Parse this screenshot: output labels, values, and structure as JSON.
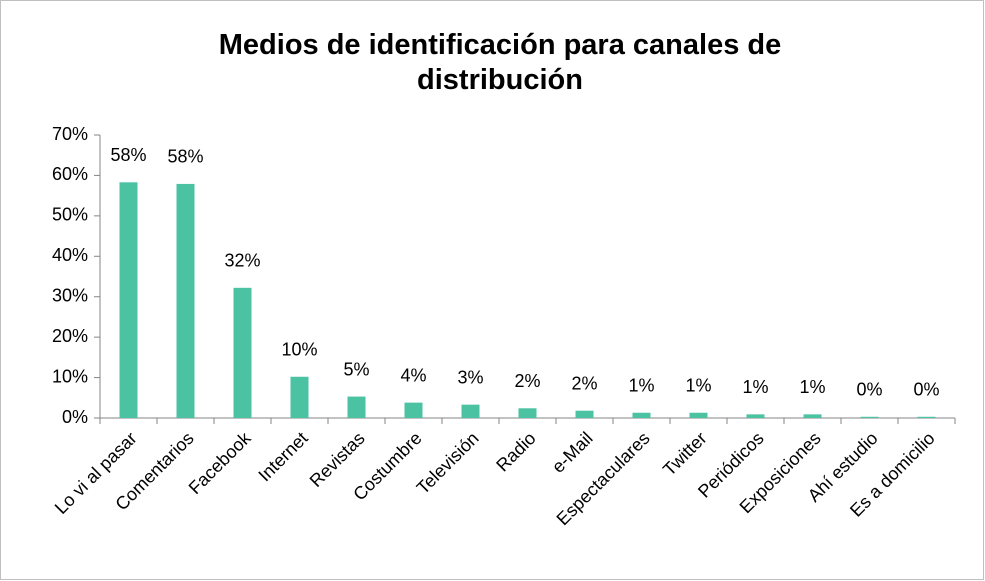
{
  "chart_data": {
    "type": "bar",
    "title": "Medios de identificación para canales de distribución",
    "categories": [
      "Lo vi al pasar",
      "Comentarios",
      "Facebook",
      "Internet",
      "Revistas",
      "Costumbre",
      "Televisión",
      "Radio",
      "e-Mail",
      "Espectaculares",
      "Twitter",
      "Periódicos",
      "Exposiciones",
      "Ahí estudio",
      "Es a domicilio"
    ],
    "values": [
      58.3,
      57.9,
      32.2,
      10.2,
      5.3,
      3.8,
      3.3,
      2.4,
      1.8,
      1.3,
      1.3,
      0.9,
      0.9,
      0.3,
      0.3
    ],
    "value_labels": [
      "58%",
      "58%",
      "32%",
      "10%",
      "5%",
      "4%",
      "3%",
      "2%",
      "2%",
      "1%",
      "1%",
      "1%",
      "1%",
      "0%",
      "0%"
    ],
    "color": "#4bc3a2",
    "ylim": [
      0,
      70
    ],
    "yticks": [
      {
        "value": 0,
        "label": "0%"
      },
      {
        "value": 10,
        "label": "10%"
      },
      {
        "value": 20,
        "label": "20%"
      },
      {
        "value": 30,
        "label": "30%"
      },
      {
        "value": 40,
        "label": "40%"
      },
      {
        "value": 50,
        "label": "50%"
      },
      {
        "value": 60,
        "label": "60%"
      },
      {
        "value": 70,
        "label": "70%"
      }
    ],
    "grid": false
  }
}
